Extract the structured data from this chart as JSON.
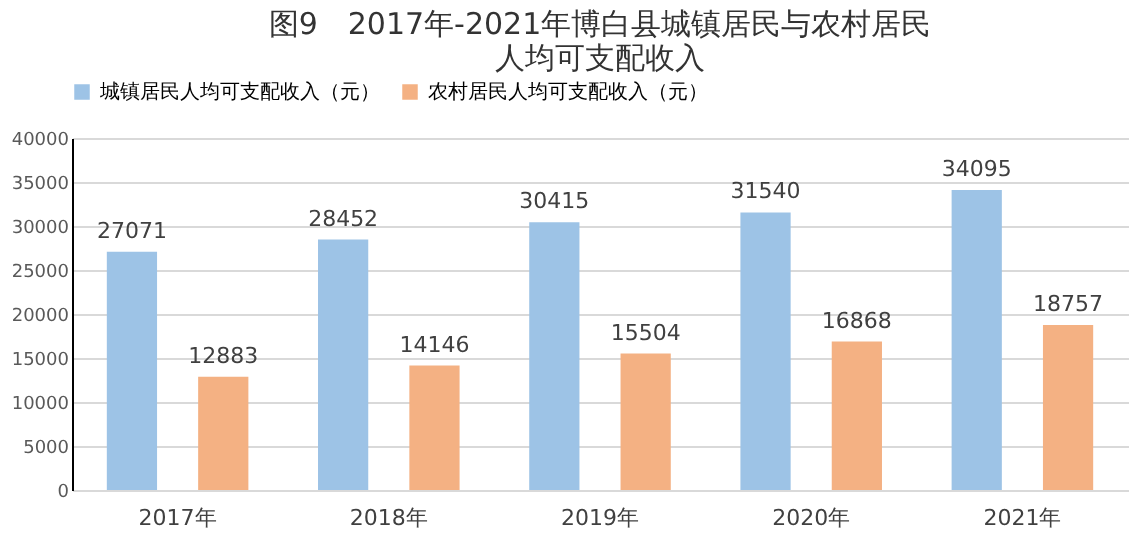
{
  "chart_data": {
    "type": "bar",
    "title": [
      "图9　2017年-2021年博白县城镇居民与农村居民",
      "人均可支配收入"
    ],
    "categories": [
      "2017年",
      "2018年",
      "2019年",
      "2020年",
      "2021年"
    ],
    "series": [
      {
        "name": "城镇居民人均可支配收入（元）",
        "color": "#9dc3e6",
        "values": [
          27071,
          28452,
          30415,
          31540,
          34095
        ]
      },
      {
        "name": "农村居民人均可支配收入（元）",
        "color": "#f4b183",
        "values": [
          12883,
          14146,
          15504,
          16868,
          18757
        ]
      }
    ],
    "ylim": [
      0,
      40000
    ],
    "yticks": [
      0,
      5000,
      10000,
      15000,
      20000,
      25000,
      30000,
      35000,
      40000
    ],
    "grid": "y",
    "legend": "top",
    "data_labels": true
  }
}
